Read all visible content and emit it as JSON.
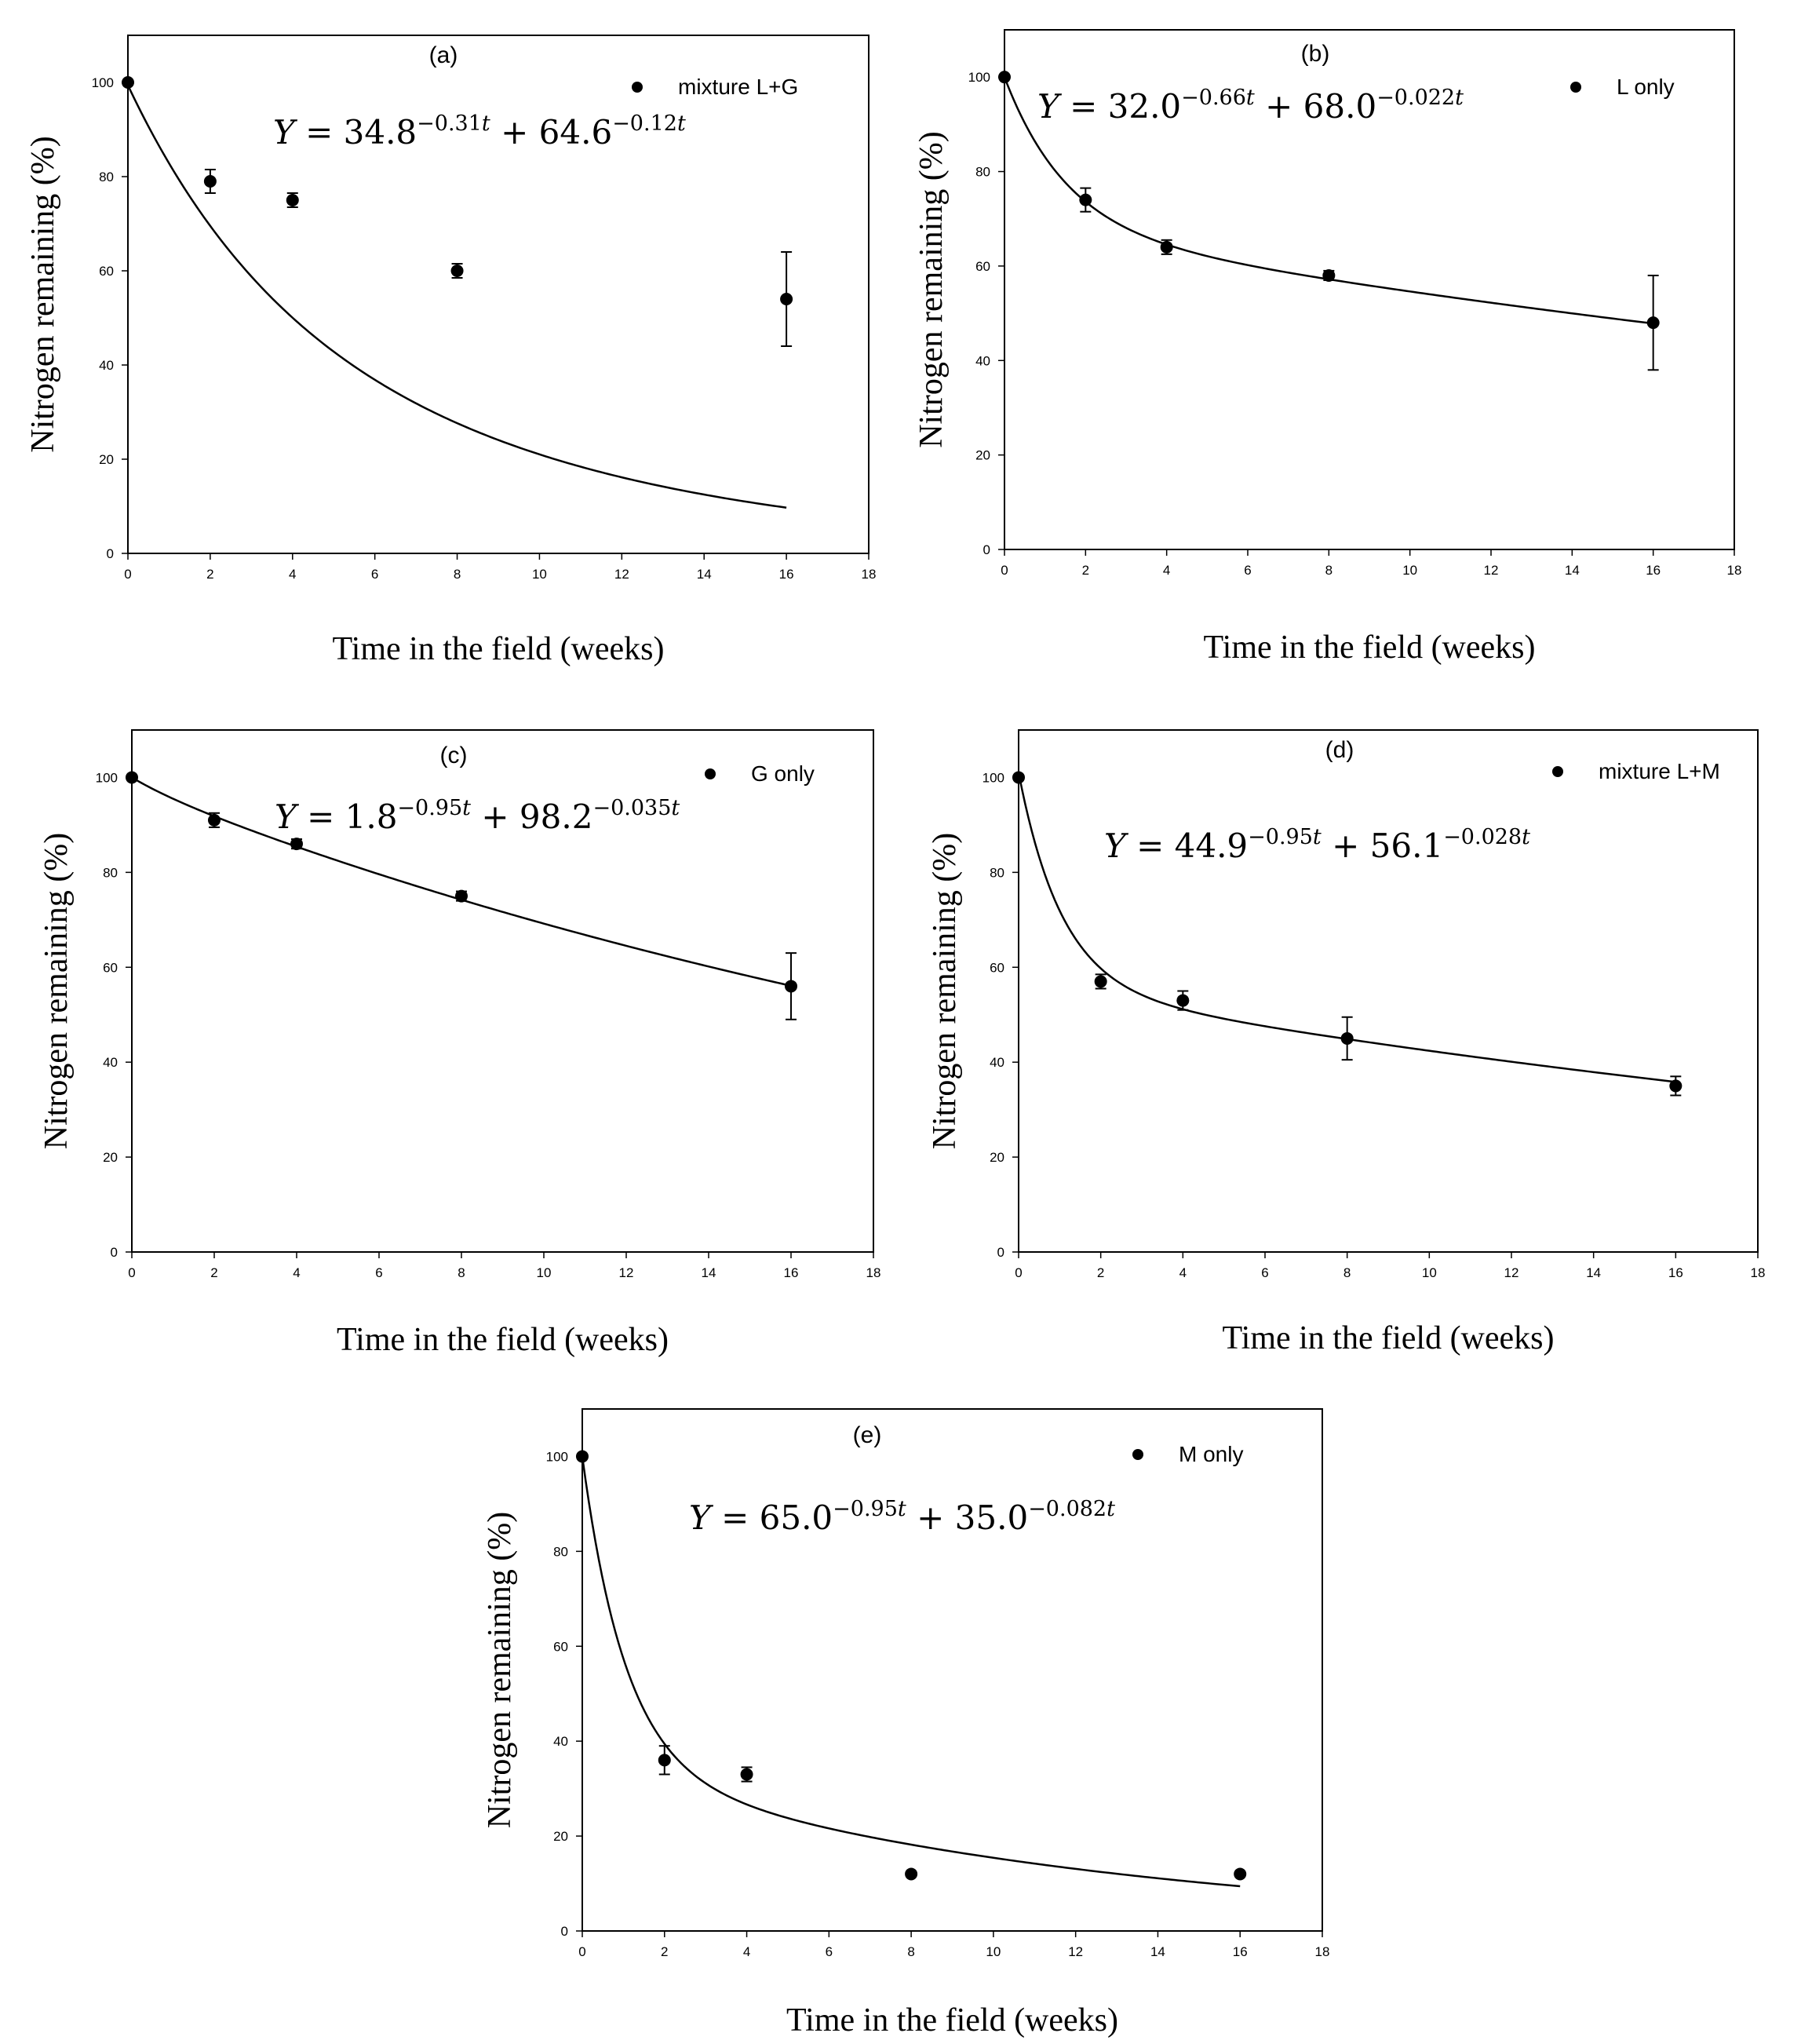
{
  "chart_data": [
    {
      "type": "scatter",
      "panel_label": "(a)",
      "legend": "mixture L+G",
      "equation": {
        "base1": "34.8",
        "exp1": "−0.31",
        "base2": "64.6",
        "exp2": "−0.12"
      },
      "fit": {
        "a": 34.8,
        "k1": 0.31,
        "b": 64.6,
        "k2": 0.12
      },
      "x": [
        0,
        2,
        4,
        8,
        16
      ],
      "y": [
        100,
        79,
        75,
        60,
        54
      ],
      "err": [
        0,
        2.5,
        1.5,
        1.5,
        10
      ],
      "xlabel": "Time in the field (weeks)",
      "ylabel": "Nitrogen remaining (%)",
      "xlim": [
        0,
        18
      ],
      "ylim": [
        0,
        110
      ],
      "xticks": [
        0,
        2,
        4,
        6,
        8,
        10,
        12,
        14,
        16,
        18
      ],
      "yticks": [
        0,
        20,
        40,
        60,
        80,
        100
      ]
    },
    {
      "type": "scatter",
      "panel_label": "(b)",
      "legend": "L only",
      "equation": {
        "base1": "32.0",
        "exp1": "−0.66",
        "base2": "68.0",
        "exp2": "−0.022"
      },
      "fit": {
        "a": 32.0,
        "k1": 0.66,
        "b": 68.0,
        "k2": 0.022
      },
      "x": [
        0,
        2,
        4,
        8,
        16
      ],
      "y": [
        100,
        74,
        64,
        58,
        48
      ],
      "err": [
        0,
        2.5,
        1.5,
        1,
        10
      ],
      "xlabel": "Time in the field (weeks)",
      "ylabel": "Nitrogen remaining (%)",
      "xlim": [
        0,
        18
      ],
      "ylim": [
        0,
        110
      ],
      "xticks": [
        0,
        2,
        4,
        6,
        8,
        10,
        12,
        14,
        16,
        18
      ],
      "yticks": [
        0,
        20,
        40,
        60,
        80,
        100
      ]
    },
    {
      "type": "scatter",
      "panel_label": "(c)",
      "legend": "G only",
      "equation": {
        "base1": "1.8",
        "exp1": "−0.95",
        "base2": "98.2",
        "exp2": "−0.035"
      },
      "fit": {
        "a": 1.8,
        "k1": 0.95,
        "b": 98.2,
        "k2": 0.035
      },
      "x": [
        0,
        2,
        4,
        8,
        16
      ],
      "y": [
        100,
        91,
        86,
        75,
        56
      ],
      "err": [
        0,
        1.5,
        1,
        1,
        7
      ],
      "xlabel": "Time in the field (weeks)",
      "ylabel": "Nitrogen remaining (%)",
      "xlim": [
        0,
        18
      ],
      "ylim": [
        0,
        110
      ],
      "xticks": [
        0,
        2,
        4,
        6,
        8,
        10,
        12,
        14,
        16,
        18
      ],
      "yticks": [
        0,
        20,
        40,
        60,
        80,
        100
      ]
    },
    {
      "type": "scatter",
      "panel_label": "(d)",
      "legend": "mixture L+M",
      "equation": {
        "base1": "44.9",
        "exp1": "−0.95",
        "base2": "56.1",
        "exp2": "−0.028"
      },
      "fit": {
        "a": 44.9,
        "k1": 0.95,
        "b": 56.1,
        "k2": 0.028
      },
      "x": [
        0,
        2,
        4,
        8,
        16
      ],
      "y": [
        100,
        57,
        53,
        45,
        35
      ],
      "err": [
        0,
        1.5,
        2,
        4.5,
        2
      ],
      "xlabel": "Time in the field (weeks)",
      "ylabel": "Nitrogen remaining (%)",
      "xlim": [
        0,
        18
      ],
      "ylim": [
        0,
        110
      ],
      "xticks": [
        0,
        2,
        4,
        6,
        8,
        10,
        12,
        14,
        16,
        18
      ],
      "yticks": [
        0,
        20,
        40,
        60,
        80,
        100
      ]
    },
    {
      "type": "scatter",
      "panel_label": "(e)",
      "legend": "M only",
      "equation": {
        "base1": "65.0",
        "exp1": "−0.95",
        "base2": "35.0",
        "exp2": "−0.082"
      },
      "fit": {
        "a": 65.0,
        "k1": 0.95,
        "b": 35.0,
        "k2": 0.082
      },
      "x": [
        0,
        2,
        4,
        8,
        16
      ],
      "y": [
        100,
        36,
        33,
        12,
        12
      ],
      "err": [
        0,
        3,
        1.5,
        0,
        0
      ],
      "xlabel": "Time in the field (weeks)",
      "ylabel": "Nitrogen remaining (%)",
      "xlim": [
        0,
        18
      ],
      "ylim": [
        0,
        110
      ],
      "xticks": [
        0,
        2,
        4,
        6,
        8,
        10,
        12,
        14,
        16,
        18
      ],
      "yticks": [
        0,
        20,
        40,
        60,
        80,
        100
      ]
    }
  ]
}
